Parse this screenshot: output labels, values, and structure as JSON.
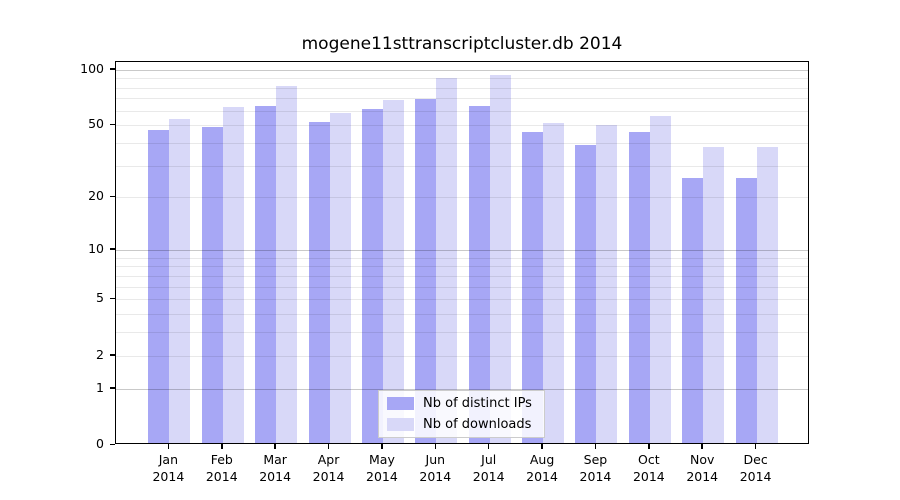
{
  "title": "mogene11sttranscriptcluster.db 2014",
  "chart_data": {
    "type": "bar",
    "title": "mogene11sttranscriptcluster.db 2014",
    "categories": [
      "Jan",
      "Feb",
      "Mar",
      "Apr",
      "May",
      "Jun",
      "Jul",
      "Aug",
      "Sep",
      "Oct",
      "Nov",
      "Dec"
    ],
    "year": "2014",
    "series": [
      {
        "name": "Nb of distinct IPs",
        "color": "#a7a7f5",
        "values": [
          46,
          48,
          62,
          51,
          60,
          68,
          62,
          45,
          38,
          45,
          25,
          25
        ]
      },
      {
        "name": "Nb of downloads",
        "color": "#d8d8f8",
        "values": [
          53,
          61,
          80,
          57,
          67,
          88,
          91,
          50,
          49,
          55,
          37,
          37
        ]
      }
    ],
    "y_scale": "log10(value+1)",
    "ylim": [
      0,
      110
    ],
    "y_ticks": [
      100,
      50,
      20,
      10,
      5,
      2,
      1,
      0
    ],
    "y_gridlines_major": [
      1,
      10,
      100
    ],
    "y_gridlines_minor": [
      2,
      3,
      4,
      5,
      6,
      7,
      8,
      9,
      20,
      30,
      40,
      50,
      60,
      70,
      80,
      90
    ],
    "grid": true,
    "legend_position": "bottom-center",
    "frame_color": "#000000",
    "background_color": "#ffffff"
  }
}
